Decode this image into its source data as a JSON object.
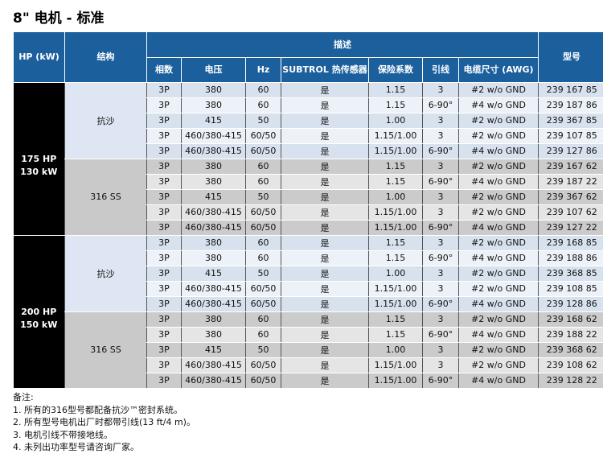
{
  "title": "8\" 电机 - 标准",
  "header": {
    "hp": "HP (kW)",
    "construction": "结构",
    "description": "描述",
    "model": "型号",
    "sub": [
      "相数",
      "电压",
      "Hz",
      "SUBTROL 热传感器",
      "保险系数",
      "引线",
      "电缆尺寸 (AWG)"
    ]
  },
  "groups": [
    {
      "hp": "175 HP",
      "kw": "130 kW",
      "sections": [
        {
          "construction": "抗沙",
          "type": "sand",
          "rows": [
            [
              "3P",
              "380",
              "60",
              "是",
              "1.15",
              "3",
              "#2 w/o GND",
              "239 167 85"
            ],
            [
              "3P",
              "380",
              "60",
              "是",
              "1.15",
              "6-90°",
              "#4 w/o GND",
              "239 187 86"
            ],
            [
              "3P",
              "415",
              "50",
              "是",
              "1.00",
              "3",
              "#2 w/o GND",
              "239 367 85"
            ],
            [
              "3P",
              "460/380-415",
              "60/50",
              "是",
              "1.15/1.00",
              "3",
              "#2 w/o GND",
              "239 107 85"
            ],
            [
              "3P",
              "460/380-415",
              "60/50",
              "是",
              "1.15/1.00",
              "6-90°",
              "#4 w/o GND",
              "239 127 86"
            ]
          ]
        },
        {
          "construction": "316 SS",
          "type": "ss",
          "rows": [
            [
              "3P",
              "380",
              "60",
              "是",
              "1.15",
              "3",
              "#2 w/o GND",
              "239 167 62"
            ],
            [
              "3P",
              "380",
              "60",
              "是",
              "1.15",
              "6-90°",
              "#4 w/o GND",
              "239 187 22"
            ],
            [
              "3P",
              "415",
              "50",
              "是",
              "1.00",
              "3",
              "#2 w/o GND",
              "239 367 62"
            ],
            [
              "3P",
              "460/380-415",
              "60/50",
              "是",
              "1.15/1.00",
              "3",
              "#2 w/o GND",
              "239 107 62"
            ],
            [
              "3P",
              "460/380-415",
              "60/50",
              "是",
              "1.15/1.00",
              "6-90°",
              "#4 w/o GND",
              "239 127 22"
            ]
          ]
        }
      ]
    },
    {
      "hp": "200 HP",
      "kw": "150 kW",
      "sections": [
        {
          "construction": "抗沙",
          "type": "sand",
          "rows": [
            [
              "3P",
              "380",
              "60",
              "是",
              "1.15",
              "3",
              "#2 w/o GND",
              "239 168 85"
            ],
            [
              "3P",
              "380",
              "60",
              "是",
              "1.15",
              "6-90°",
              "#4 w/o GND",
              "239 188 86"
            ],
            [
              "3P",
              "415",
              "50",
              "是",
              "1.00",
              "3",
              "#2 w/o GND",
              "239 368 85"
            ],
            [
              "3P",
              "460/380-415",
              "60/50",
              "是",
              "1.15/1.00",
              "3",
              "#2 w/o GND",
              "239 108 85"
            ],
            [
              "3P",
              "460/380-415",
              "60/50",
              "是",
              "1.15/1.00",
              "6-90°",
              "#4 w/o GND",
              "239 128 86"
            ]
          ]
        },
        {
          "construction": "316 SS",
          "type": "ss",
          "rows": [
            [
              "3P",
              "380",
              "60",
              "是",
              "1.15",
              "3",
              "#2 w/o GND",
              "239 168 62"
            ],
            [
              "3P",
              "380",
              "60",
              "是",
              "1.15",
              "6-90°",
              "#4 w/o GND",
              "239 188 22"
            ],
            [
              "3P",
              "415",
              "50",
              "是",
              "1.00",
              "3",
              "#2 w/o GND",
              "239 368 62"
            ],
            [
              "3P",
              "460/380-415",
              "60/50",
              "是",
              "1.15/1.00",
              "3",
              "#2 w/o GND",
              "239 108 62"
            ],
            [
              "3P",
              "460/380-415",
              "60/50",
              "是",
              "1.15/1.00",
              "6-90°",
              "#4 w/o GND",
              "239 128 22"
            ]
          ]
        }
      ]
    }
  ],
  "notes": [
    "备注:",
    "1. 所有的316型号都配备抗沙™密封系统。",
    "2. 所有型号电机出厂时都带引线(13 ft/4 m)。",
    "3. 电机引线不带接地线。",
    "4. 未列出功率型号请咨询厂家。"
  ]
}
